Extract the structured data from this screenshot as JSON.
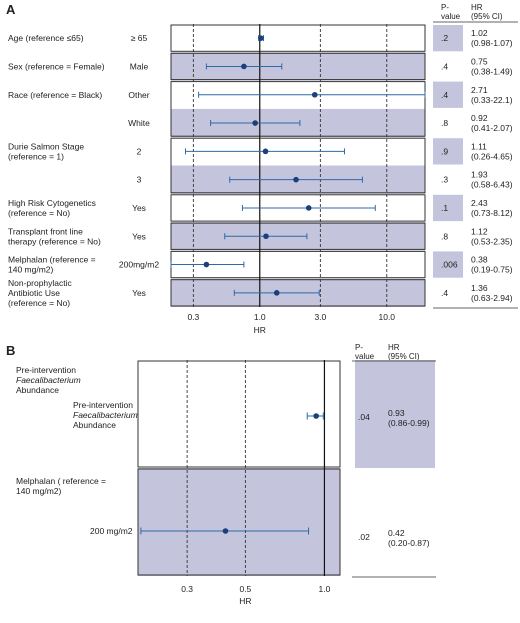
{
  "colors": {
    "shade": "#c4c4dc",
    "point": "#1b3f7a",
    "line": "#2e6aa8",
    "border": "#333333",
    "grid": "#333333"
  },
  "chart_data": [
    {
      "panel_label": "A",
      "type": "forest",
      "xlabel": "HR",
      "x_scale": "log",
      "xlim": [
        0.2,
        20
      ],
      "xticks": [
        0.3,
        1.0,
        3.0,
        10.0
      ],
      "xtick_labels": [
        "0.3",
        "1.0",
        "3.0",
        "10.0"
      ],
      "reference_line": 1.0,
      "dashed_lines": [
        0.3,
        3.0,
        10.0
      ],
      "col_headers": {
        "p": "P-value",
        "hr": "HR\n(95% CI)"
      },
      "rows": [
        {
          "group": "Age (reference ≤65)",
          "level": "≥ 65",
          "hr": 1.02,
          "lo": 0.98,
          "hi": 1.07,
          "p": ".2",
          "hr_text": "1.02",
          "ci_text": "(0.98-1.07)",
          "shaded": false,
          "p_shaded": true
        },
        {
          "group": "Sex (reference = Female)",
          "level": "Male",
          "hr": 0.75,
          "lo": 0.38,
          "hi": 1.49,
          "p": ".4",
          "hr_text": "0.75",
          "ci_text": "(0.38-1.49)",
          "shaded": true,
          "p_shaded": false
        },
        {
          "group": "Race (reference = Black)",
          "level": "Other",
          "hr": 2.71,
          "lo": 0.33,
          "hi": 22.1,
          "p": ".4",
          "hr_text": "2.71",
          "ci_text": "(0.33-22.1)",
          "shaded": false,
          "p_shaded": true
        },
        {
          "group": "",
          "level": "White",
          "hr": 0.92,
          "lo": 0.41,
          "hi": 2.07,
          "p": ".8",
          "hr_text": "0.92",
          "ci_text": "(0.41-2.07)",
          "shaded": true,
          "p_shaded": false
        },
        {
          "group": "Durie Salmon Stage\n(reference = 1)",
          "level": "2",
          "hr": 1.11,
          "lo": 0.26,
          "hi": 4.65,
          "p": ".9",
          "hr_text": "1.11",
          "ci_text": "(0.26-4.65)",
          "shaded": false,
          "p_shaded": true
        },
        {
          "group": "",
          "level": "3",
          "hr": 1.93,
          "lo": 0.58,
          "hi": 6.43,
          "p": ".3",
          "hr_text": "1.93",
          "ci_text": "(0.58-6.43)",
          "shaded": true,
          "p_shaded": false
        },
        {
          "group": "High Risk Cytogenetics\n(reference = No)",
          "level": "Yes",
          "hr": 2.43,
          "lo": 0.73,
          "hi": 8.12,
          "p": ".1",
          "hr_text": "2.43",
          "ci_text": "(0.73-8.12)",
          "shaded": false,
          "p_shaded": true
        },
        {
          "group": "Transplant front line\ntherapy (reference = No)",
          "level": "Yes",
          "hr": 1.12,
          "lo": 0.53,
          "hi": 2.35,
          "p": ".8",
          "hr_text": "1.12",
          "ci_text": "(0.53-2.35)",
          "shaded": true,
          "p_shaded": false
        },
        {
          "group": "Melphalan (reference =\n140 mg/m2)",
          "level": "200mg/m2",
          "hr": 0.38,
          "lo": 0.19,
          "hi": 0.75,
          "p": ".006",
          "hr_text": "0.38",
          "ci_text": "(0.19-0.75)",
          "shaded": false,
          "p_shaded": true
        },
        {
          "group": "Non-prophylactic\nAntibiotic Use\n(reference = No)",
          "level": "Yes",
          "hr": 1.36,
          "lo": 0.63,
          "hi": 2.94,
          "p": ".4",
          "hr_text": "1.36",
          "ci_text": "(0.63-2.94)",
          "shaded": true,
          "p_shaded": false
        }
      ]
    },
    {
      "panel_label": "B",
      "type": "forest",
      "xlabel": "HR",
      "x_scale": "log",
      "xlim": [
        0.195,
        1.05
      ],
      "xticks": [
        0.3,
        0.5,
        1.0
      ],
      "xtick_labels": [
        "0.3",
        "0.5",
        "1.0"
      ],
      "reference_line": 1.0,
      "dashed_lines": [
        0.3,
        0.5
      ],
      "col_headers": {
        "p": "P-value",
        "hr": "HR\n(95% CI)"
      },
      "rows": [
        {
          "group": "Pre-intervention\n*Faecalibacterium*\nAbundance",
          "level": "Pre-intervention\n*Faecalibacterium*\nAbundance",
          "hr": 0.93,
          "lo": 0.86,
          "hi": 0.99,
          "p": ".04",
          "hr_text": "0.93",
          "ci_text": "(0.86-0.99)",
          "shaded": false,
          "p_shaded": true
        },
        {
          "group": "Melphalan ( reference =\n140 mg/m2)",
          "level": "200 mg/m2",
          "hr": 0.42,
          "lo": 0.2,
          "hi": 0.87,
          "p": ".02",
          "hr_text": "0.42",
          "ci_text": "(0.20-0.87)",
          "shaded": true,
          "p_shaded": false
        }
      ]
    }
  ]
}
